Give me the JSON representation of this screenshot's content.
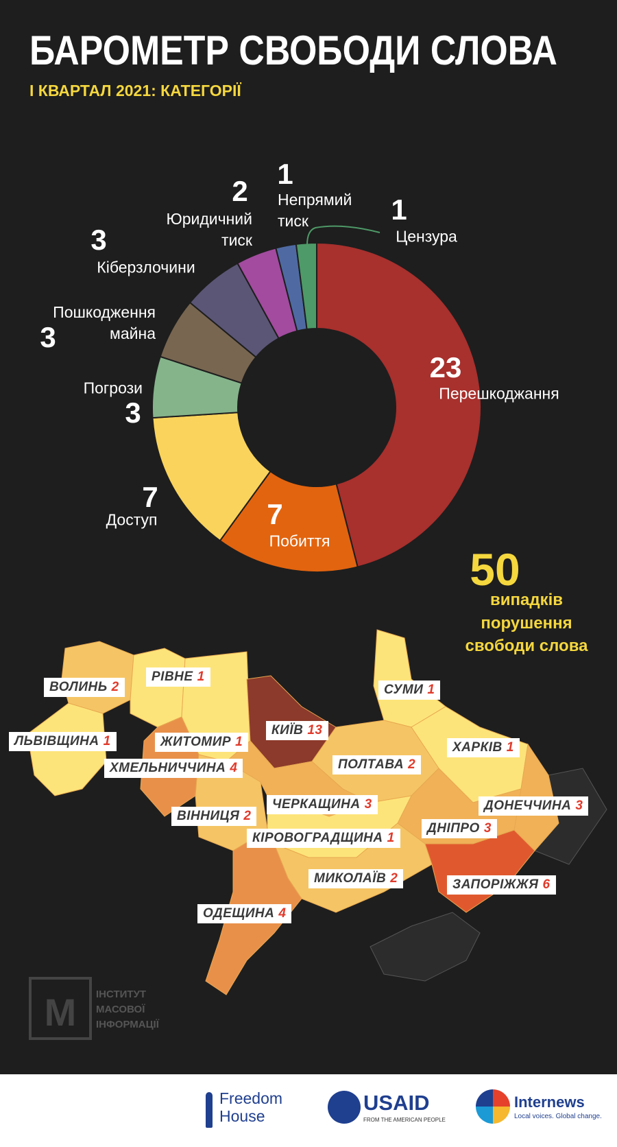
{
  "chart_data": {
    "type": "pie",
    "title": "БАРОМЕТР СВОБОДИ СЛОВА",
    "subtitle": "І КВАРТАЛ 2021: КАТЕГОРІЇ",
    "categories": [
      "Перешкоджання",
      "Побиття",
      "Доступ",
      "Погрози",
      "Пошкодження майна",
      "Кіберзлочини",
      "Юридичний тиск",
      "Непрямий тиск",
      "Цензура"
    ],
    "values": [
      23,
      7,
      7,
      3,
      3,
      3,
      2,
      1,
      1
    ],
    "colors": [
      "#a8302d",
      "#e2640f",
      "#f9d35b",
      "#85b48b",
      "#786650",
      "#5b5676",
      "#a24b9f",
      "#4f6aa3",
      "#4e9a68"
    ],
    "total": 50,
    "total_label": [
      "випадків",
      "порушення",
      "свободи слова"
    ]
  },
  "map": {
    "regions": [
      {
        "name": "ВОЛИНЬ",
        "value": 2
      },
      {
        "name": "РІВНЕ",
        "value": 1
      },
      {
        "name": "ЛЬВІВЩИНА",
        "value": 1
      },
      {
        "name": "ЖИТОМИР",
        "value": 1
      },
      {
        "name": "ХМЕЛЬНИЧЧИНА",
        "value": 4
      },
      {
        "name": "КИЇВ",
        "value": 13
      },
      {
        "name": "СУМИ",
        "value": 1
      },
      {
        "name": "ХАРКІВ",
        "value": 1
      },
      {
        "name": "ПОЛТАВА",
        "value": 2
      },
      {
        "name": "ЧЕРКАЩИНА",
        "value": 3
      },
      {
        "name": "ДОНЕЧЧИНА",
        "value": 3
      },
      {
        "name": "ВІННИЦЯ",
        "value": 2
      },
      {
        "name": "ДНІПРО",
        "value": 3
      },
      {
        "name": "КІРОВОГРАДЩИНА",
        "value": 1
      },
      {
        "name": "МИКОЛАЇВ",
        "value": 2
      },
      {
        "name": "ЗАПОРІЖЖЯ",
        "value": 6
      },
      {
        "name": "ОДЕЩИНА",
        "value": 4
      }
    ]
  },
  "watermark": [
    "ІНСТИТУТ",
    "МАСОВОЇ",
    "ІНФОРМАЦІЇ"
  ],
  "footer": {
    "freedom_house": [
      "Freedom",
      "House"
    ],
    "usaid": "USAID",
    "usaid_sub": "FROM THE AMERICAN PEOPLE",
    "internews": "Internews",
    "internews_sub": "Local voices. Global change."
  }
}
